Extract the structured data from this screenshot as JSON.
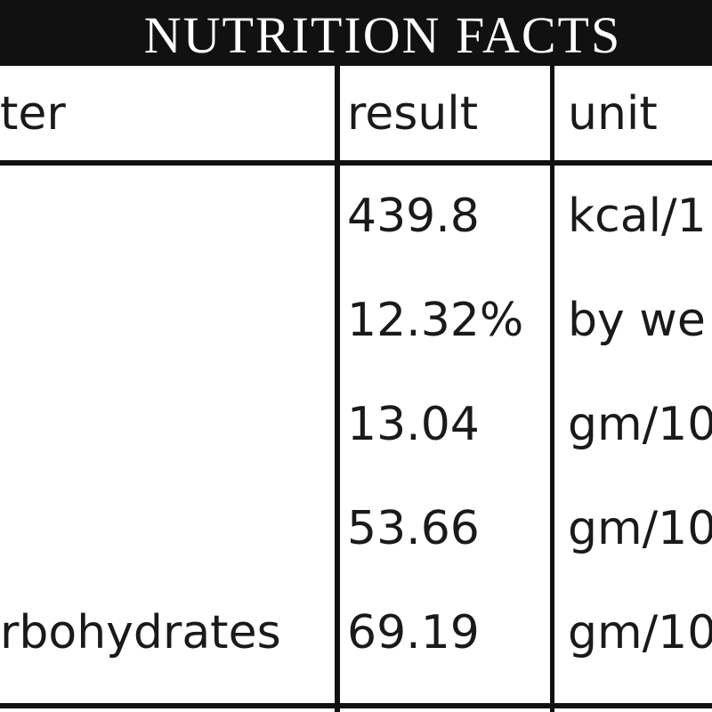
{
  "header": {
    "title": "NUTRITION FACTS"
  },
  "table": {
    "columns": {
      "parameter": "ter",
      "result": "result",
      "unit": "unit"
    },
    "rows": [
      {
        "result": "439.8",
        "unit": "kcal/1"
      },
      {
        "result": "12.32%",
        "unit": "by we"
      },
      {
        "result": "13.04",
        "unit": "gm/10"
      },
      {
        "result": "53.66",
        "unit": "gm/10"
      },
      {
        "parameter": "rbohydrates",
        "result": "69.19",
        "unit": "gm/10"
      }
    ]
  }
}
